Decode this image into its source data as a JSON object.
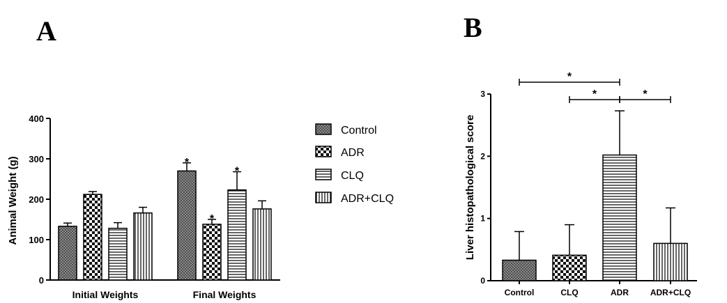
{
  "panels": {
    "a_label": "A",
    "b_label": "B"
  },
  "chart_data": [
    {
      "type": "bar",
      "panel": "A",
      "ylabel": "Animal Weight (g)",
      "ylim": [
        0,
        400
      ],
      "yticks": [
        "0",
        "100",
        "200",
        "300",
        "400"
      ],
      "categories": [
        "Initial Weights",
        "Final Weights"
      ],
      "legend_position": "right",
      "series": [
        {
          "name": "Control",
          "pattern": "crosshatch",
          "values": [
            133,
            270
          ],
          "errors": [
            8,
            20
          ],
          "significant": [
            false,
            true
          ]
        },
        {
          "name": "ADR",
          "pattern": "checker",
          "values": [
            212,
            138
          ],
          "errors": [
            7,
            12
          ],
          "significant": [
            false,
            true
          ]
        },
        {
          "name": "CLQ",
          "pattern": "horizontal",
          "values": [
            128,
            223
          ],
          "errors": [
            14,
            45
          ],
          "significant": [
            false,
            true
          ]
        },
        {
          "name": "ADR+CLQ",
          "pattern": "vertical",
          "values": [
            166,
            176
          ],
          "errors": [
            14,
            20
          ],
          "significant": [
            false,
            false
          ]
        }
      ],
      "significance_mark": "*"
    },
    {
      "type": "bar",
      "panel": "B",
      "ylabel": "Liver histopathological score",
      "ylim": [
        0,
        3
      ],
      "yticks": [
        "0",
        "1",
        "2",
        "3"
      ],
      "categories": [
        "Control",
        "CLQ",
        "ADR",
        "ADR+CLQ"
      ],
      "values": [
        0.33,
        0.41,
        2.02,
        0.6
      ],
      "errors": [
        0.46,
        0.49,
        0.71,
        0.57
      ],
      "patterns": [
        "crosshatch",
        "checker",
        "horizontal",
        "vertical"
      ],
      "comparisons": [
        {
          "from": "Control",
          "to": "ADR",
          "label": "*"
        },
        {
          "from": "CLQ",
          "to": "ADR",
          "label": "*"
        },
        {
          "from": "ADR",
          "to": "ADR+CLQ",
          "label": "*"
        }
      ]
    }
  ]
}
